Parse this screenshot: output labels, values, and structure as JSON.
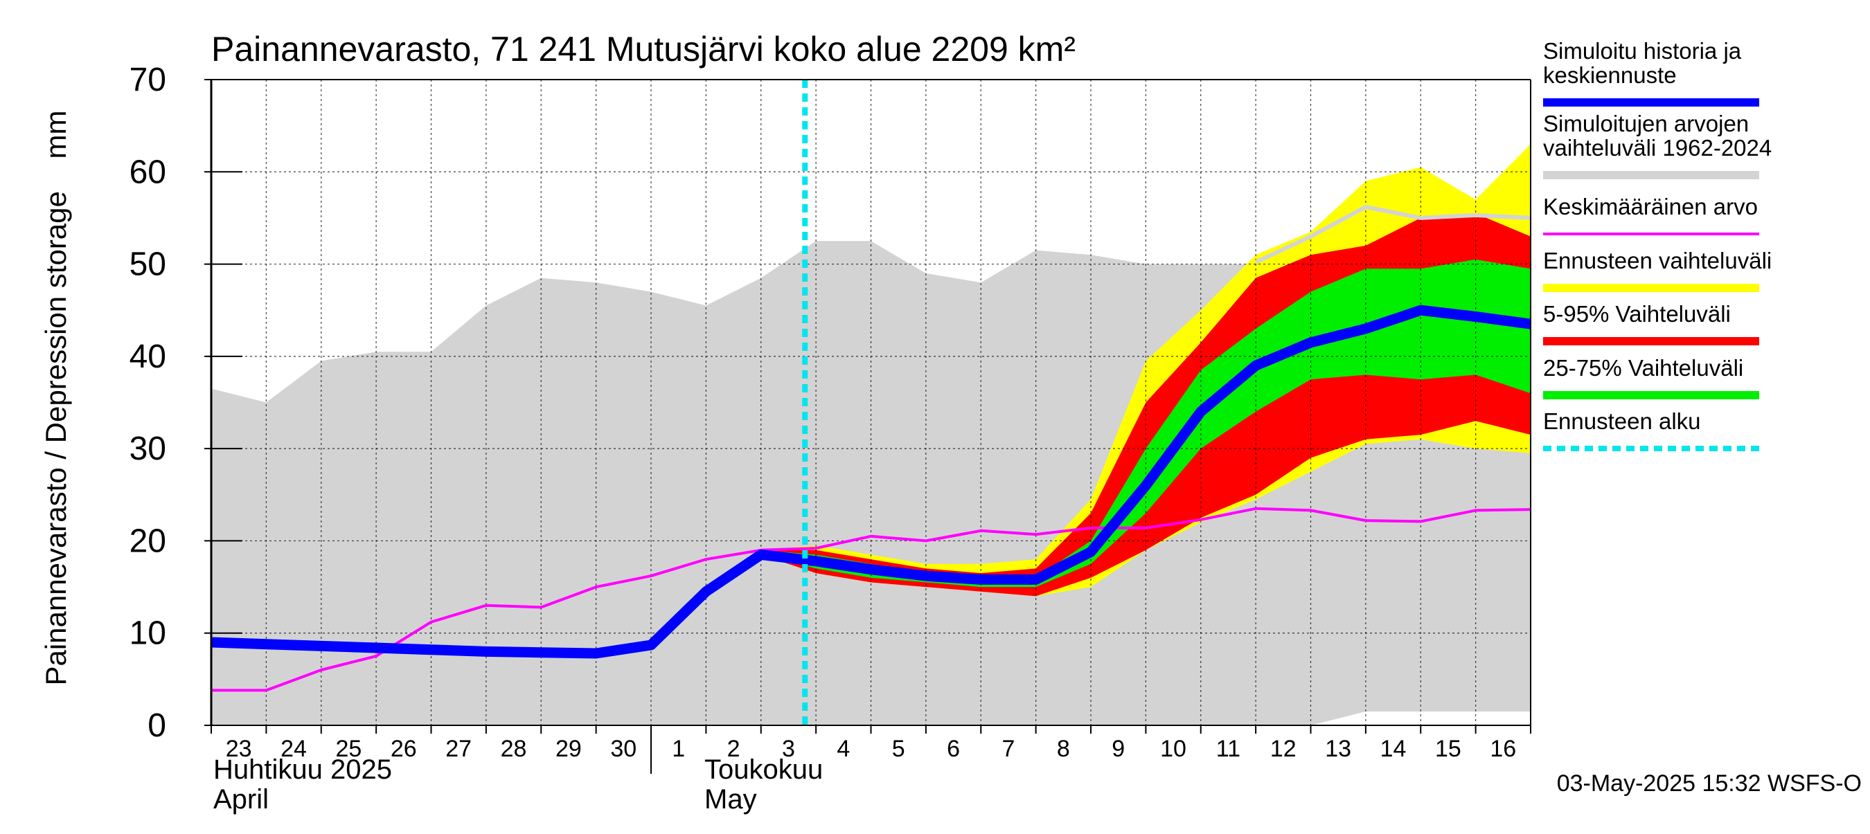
{
  "chart_data": {
    "type": "area",
    "title": "Painannevarasto, 71 241 Mutusjärvi koko alue 2209 km²",
    "ylabel": "Painannevarasto / Depression storage    mm",
    "ylim": [
      0,
      70
    ],
    "yticks": [
      0,
      10,
      20,
      30,
      40,
      50,
      60,
      70
    ],
    "grid": true,
    "legend_position": "right",
    "x_days": [
      "23",
      "24",
      "25",
      "26",
      "27",
      "28",
      "29",
      "30",
      "1",
      "2",
      "3",
      "4",
      "5",
      "6",
      "7",
      "8",
      "9",
      "10",
      "11",
      "12",
      "13",
      "14",
      "15",
      "16"
    ],
    "month_labels": [
      {
        "line1": "Huhtikuu  2025",
        "line2": "April"
      },
      {
        "line1": "Toukokuu",
        "line2": "May"
      }
    ],
    "forecast_start_day": 10.8,
    "colors": {
      "history_range": "#d3d3d3",
      "forecast_range": "#ffff00",
      "p5_95": "#ff0000",
      "p25_75": "#00ee00",
      "median": "#0000ff",
      "mean": "#ff00ff",
      "forecast_start": "#00e5ee",
      "simulated_range_line": "#d3d3d3"
    },
    "series": [
      {
        "name": "Simuloitujen arvojen vaihteluväli 1962-2024",
        "kind": "band",
        "x": [
          0,
          1,
          2,
          3,
          4,
          5,
          6,
          7,
          8,
          9,
          10,
          11,
          12,
          13,
          14,
          15,
          16,
          17,
          18,
          19,
          20,
          21,
          22,
          23,
          24
        ],
        "upper": [
          36.5,
          35,
          39.5,
          40.5,
          40.5,
          45.5,
          48.5,
          48,
          47,
          45.5,
          48.5,
          52.5,
          52.5,
          49,
          48,
          51.5,
          51,
          50,
          50,
          50,
          53,
          56.5,
          55,
          55.5,
          55
        ],
        "lower": [
          0,
          0,
          0,
          0,
          0,
          0,
          0,
          0,
          0,
          0,
          0,
          0,
          0,
          0,
          0,
          0,
          0,
          0,
          0,
          0,
          0,
          1.5,
          1.5,
          1.5,
          1.5
        ]
      },
      {
        "name": "Ennusteen vaihteluväli",
        "kind": "band",
        "x": [
          10,
          11,
          12,
          13,
          14,
          15,
          16,
          17,
          18,
          19,
          20,
          21,
          22,
          23,
          24
        ],
        "upper": [
          19,
          19.5,
          18.5,
          17.5,
          17.5,
          18,
          24.5,
          39.5,
          45,
          51,
          53.5,
          59,
          60.5,
          57,
          63
        ],
        "lower": [
          18.5,
          16.5,
          15.5,
          15,
          14.5,
          14,
          15,
          19,
          22,
          24.5,
          27.5,
          30.5,
          31,
          30,
          29.5
        ]
      },
      {
        "name": "5-95% Vaihteluväli",
        "kind": "band",
        "x": [
          10,
          11,
          12,
          13,
          14,
          15,
          16,
          17,
          18,
          19,
          20,
          21,
          22,
          23,
          24
        ],
        "upper": [
          19,
          19,
          18,
          17,
          16.5,
          17,
          23,
          35,
          41.5,
          48.5,
          51,
          52,
          55,
          55.5,
          53
        ],
        "lower": [
          18.5,
          16.5,
          15.5,
          15,
          14.5,
          14,
          16,
          19,
          22.5,
          25,
          29,
          31,
          31.5,
          33,
          31.5
        ]
      },
      {
        "name": "25-75% Vaihteluväli",
        "kind": "band",
        "x": [
          10,
          11,
          12,
          13,
          14,
          15,
          16,
          17,
          18,
          19,
          20,
          21,
          22,
          23,
          24
        ],
        "upper": [
          19,
          18.5,
          17.5,
          16.5,
          16,
          16,
          20,
          30,
          38.5,
          43,
          47,
          49.5,
          49.5,
          50.5,
          49.5
        ],
        "lower": [
          18.5,
          17,
          16,
          15.5,
          15,
          15,
          17.5,
          23,
          30,
          34,
          37.5,
          38,
          37.5,
          38,
          36
        ]
      },
      {
        "name": "Simuloitu historia ja keskiennuste",
        "kind": "line",
        "x": [
          0,
          1,
          2,
          3,
          4,
          5,
          6,
          7,
          8,
          9,
          10,
          11,
          12,
          13,
          14,
          15,
          16,
          17,
          18,
          19,
          20,
          21,
          22,
          23,
          24
        ],
        "values": [
          9,
          8.8,
          8.6,
          8.4,
          8.2,
          8,
          7.9,
          7.8,
          8.7,
          14.5,
          18.5,
          17.8,
          16.9,
          16.2,
          15.8,
          15.8,
          18.8,
          26,
          34,
          39,
          41.5,
          43,
          45,
          44.3,
          43.5
        ]
      },
      {
        "name": "Keskimääräinen arvo",
        "kind": "line",
        "x": [
          0,
          1,
          2,
          3,
          4,
          5,
          6,
          7,
          8,
          9,
          10,
          11,
          12,
          13,
          14,
          15,
          16,
          17,
          18,
          19,
          20,
          21,
          22,
          23,
          24
        ],
        "values": [
          3.8,
          3.8,
          6,
          7.5,
          11.2,
          13,
          12.8,
          15,
          16.2,
          18,
          19,
          19.2,
          20.5,
          20,
          21.1,
          20.7,
          21.4,
          21.4,
          22.3,
          23.5,
          23.3,
          22.2,
          22.1,
          23.3,
          23.4
        ]
      }
    ],
    "simulated_range_top_line": {
      "x": [
        19,
        20,
        21,
        22,
        23,
        24
      ],
      "values": [
        50.2,
        53,
        56.2,
        55,
        55.3,
        55
      ]
    },
    "legend": [
      {
        "label": "Simuloitu historia ja keskiennuste",
        "swatch": "median"
      },
      {
        "label": "Simuloitujen arvojen vaihteluväli 1962-2024",
        "swatch": "history_range"
      },
      {
        "label": "Keskimääräinen arvo",
        "swatch": "mean"
      },
      {
        "label": "Ennusteen vaihteluväli",
        "swatch": "forecast_range"
      },
      {
        "label": "5-95% Vaihteluväli",
        "swatch": "p5_95"
      },
      {
        "label": "25-75% Vaihteluväli",
        "swatch": "p25_75"
      },
      {
        "label": "Ennusteen alku",
        "swatch": "forecast_start"
      }
    ],
    "legend_lines": [
      [
        "Simuloitu historia ja",
        "keskiennuste"
      ],
      [
        "Simuloitujen arvojen",
        "vaihteluväli 1962-2024"
      ],
      [
        "Keskimääräinen arvo"
      ],
      [
        "Ennusteen vaihteluväli"
      ],
      [
        "5-95% Vaihteluväli"
      ],
      [
        "25-75% Vaihteluväli"
      ],
      [
        "Ennusteen alku"
      ]
    ],
    "footer": "03-May-2025 15:32 WSFS-O"
  }
}
